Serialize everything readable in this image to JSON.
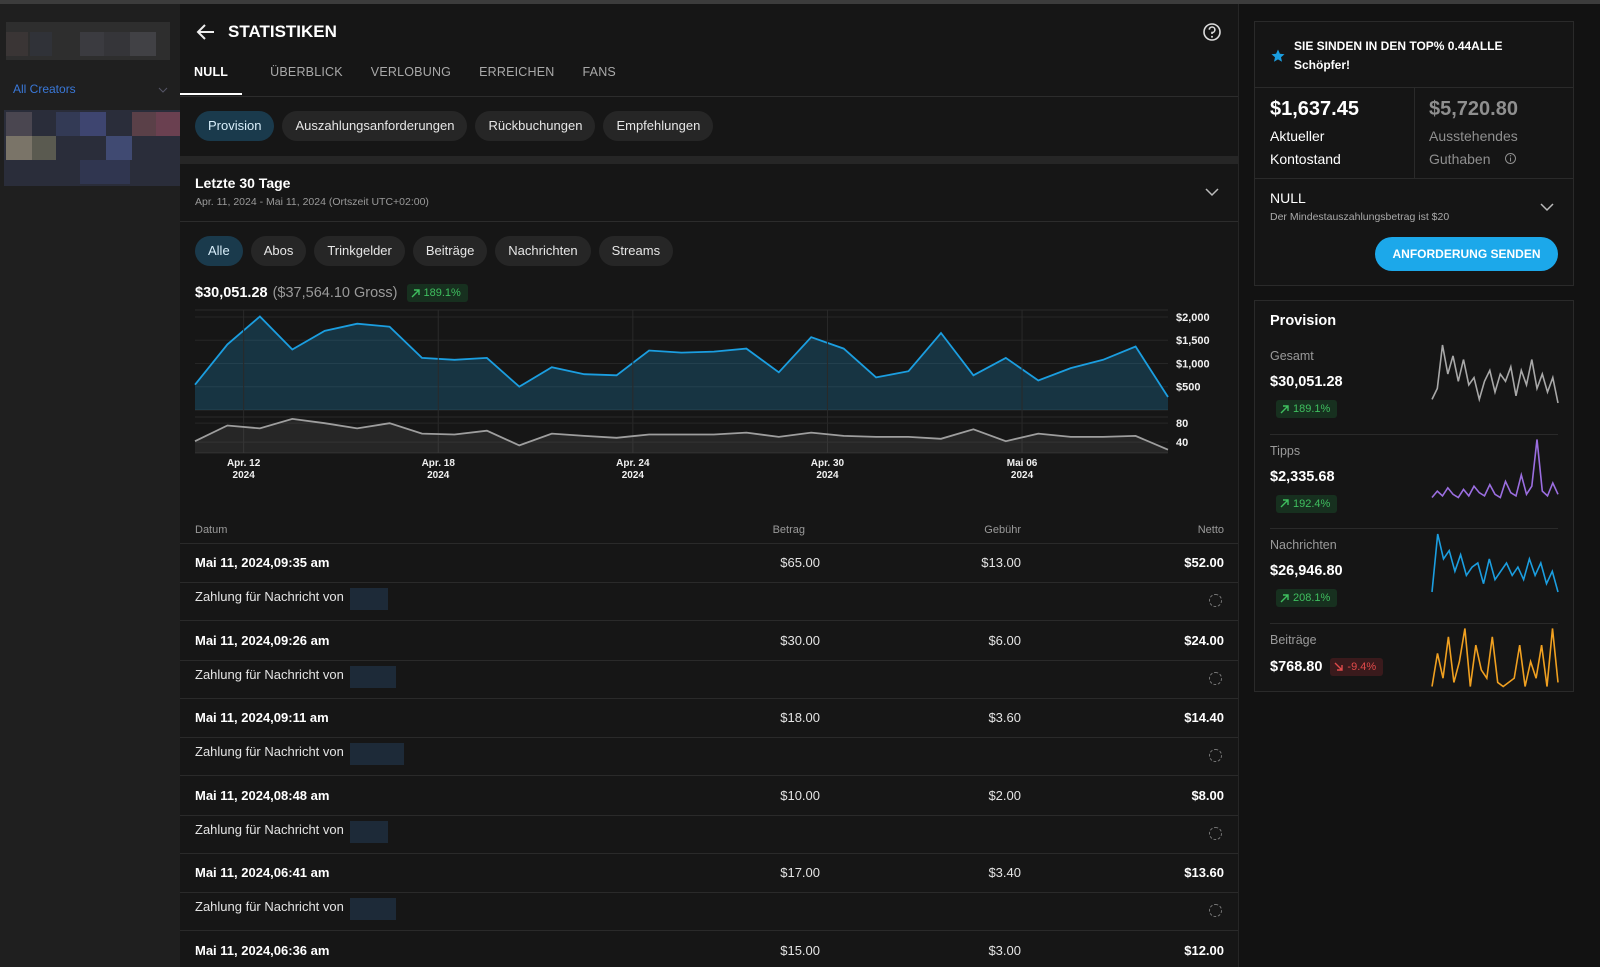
{
  "sidebar": {
    "filter": "All Creators"
  },
  "header": {
    "title": "STATISTIKEN",
    "tabs": [
      "NULL",
      "ÜBERBLICK",
      "VERLOBUNG",
      "ERREICHEN",
      "FANS"
    ]
  },
  "sections": [
    "Provision",
    "Auszahlungsanforderungen",
    "Rückbuchungen",
    "Empfehlungen"
  ],
  "period": {
    "title": "Letzte 30 Tage",
    "range": "Apr. 11, 2024 - Mai 11, 2024 (Ortszeit UTC+02:00)"
  },
  "filters": [
    "Alle",
    "Abos",
    "Trinkgelder",
    "Beiträge",
    "Nachrichten",
    "Streams"
  ],
  "summary": {
    "net": "$30,051.28",
    "gross": "($37,564.10 Gross)",
    "change": "189.1%"
  },
  "chart_data": [
    {
      "type": "area",
      "color": "#1b9ee0",
      "categories": [
        null,
        "Apr. 12\n2024",
        null,
        null,
        null,
        null,
        null,
        "Apr. 18\n2024",
        null,
        null,
        null,
        null,
        null,
        "Apr. 24\n2024",
        null,
        null,
        null,
        null,
        null,
        "Apr. 30\n2024",
        null,
        null,
        null,
        null,
        null,
        "Mai 06\n2024",
        null,
        null,
        null,
        null,
        null
      ],
      "values": [
        545,
        1410,
        2010,
        1300,
        1700,
        1855,
        1790,
        1120,
        1080,
        1120,
        500,
        920,
        770,
        745,
        1280,
        1235,
        1255,
        1320,
        810,
        1565,
        1320,
        700,
        835,
        1655,
        745,
        1120,
        635,
        900,
        1080,
        1365,
        280
      ],
      "ylim": [
        0,
        2150
      ],
      "yticks": [
        {
          "value": 2000,
          "label": "$2,000"
        },
        {
          "value": 1500,
          "label": "$1,500"
        },
        {
          "value": 1000,
          "label": "$1,000"
        },
        {
          "value": 500,
          "label": "$500"
        }
      ]
    },
    {
      "type": "area",
      "color": "#9e9e9e",
      "values": [
        42,
        75,
        69,
        89,
        80,
        69,
        80,
        58,
        56,
        64,
        33,
        58,
        53,
        49,
        56,
        56,
        56,
        60,
        51,
        60,
        53,
        51,
        51,
        47,
        67,
        42,
        58,
        51,
        51,
        53,
        24
      ],
      "ylim": [
        17,
        93
      ],
      "yticks": [
        80,
        40
      ]
    },
    {
      "type": "line",
      "color": "#a8a8a8",
      "values": [
        400,
        700,
        1900,
        1100,
        1600,
        900,
        1500,
        800,
        1000,
        400,
        900,
        1200,
        600,
        1100,
        900,
        1300,
        500,
        1200,
        800,
        1500,
        700,
        1100,
        600,
        1000,
        300
      ]
    },
    {
      "type": "line",
      "color": "#9b6ee0",
      "values": [
        20,
        60,
        30,
        80,
        40,
        20,
        70,
        30,
        90,
        50,
        30,
        100,
        40,
        20,
        120,
        50,
        30,
        160,
        40,
        90,
        380,
        60,
        30,
        110,
        40
      ]
    },
    {
      "type": "line",
      "color": "#1b9ee0",
      "values": [
        300,
        1700,
        1100,
        1300,
        800,
        1200,
        700,
        900,
        1000,
        500,
        1100,
        600,
        800,
        1000,
        700,
        900,
        600,
        1100,
        700,
        1000,
        500,
        800,
        300
      ]
    },
    {
      "type": "line",
      "color": "#f0a020",
      "values": [
        10,
        50,
        20,
        70,
        15,
        40,
        80,
        10,
        60,
        30,
        20,
        70,
        15,
        10,
        15,
        20,
        60,
        10,
        40,
        20,
        60,
        10,
        80,
        15
      ]
    }
  ],
  "table": {
    "columns": [
      "Datum",
      "Betrag",
      "Gebühr",
      "Netto"
    ],
    "rows": [
      {
        "date": "Mai 11, 2024,09:35 am",
        "amount": "$65.00",
        "fee": "$13.00",
        "net": "$52.00",
        "description": "Zahlung für Nachricht von"
      },
      {
        "date": "Mai 11, 2024,09:26 am",
        "amount": "$30.00",
        "fee": "$6.00",
        "net": "$24.00",
        "description": "Zahlung für Nachricht von"
      },
      {
        "date": "Mai 11, 2024,09:11 am",
        "amount": "$18.00",
        "fee": "$3.60",
        "net": "$14.40",
        "description": "Zahlung für Nachricht von"
      },
      {
        "date": "Mai 11, 2024,08:48 am",
        "amount": "$10.00",
        "fee": "$2.00",
        "net": "$8.00",
        "description": "Zahlung für Nachricht von"
      },
      {
        "date": "Mai 11, 2024,06:41 am",
        "amount": "$17.00",
        "fee": "$3.40",
        "net": "$13.60",
        "description": "Zahlung für Nachricht von"
      },
      {
        "date": "Mai 11, 2024,06:36 am",
        "amount": "$15.00",
        "fee": "$3.00",
        "net": "$12.00"
      }
    ]
  },
  "notice": "SIE SINDEN IN DEN TOP% 0.44ALLE Schöpfer!",
  "balance": {
    "current": "$1,637.45",
    "current_label": "Aktueller Kontostand",
    "pending": "$5,720.80",
    "pending_label": "Ausstehendes Guthaben"
  },
  "payout": {
    "method": "NULL",
    "note": "Der Mindestauszahlungsbetrag ist $20",
    "button": "ANFORDERUNG SENDEN"
  },
  "provision": {
    "title": "Provision",
    "items": [
      {
        "label": "Gesamt",
        "value": "$30,051.28",
        "change": "189.1%"
      },
      {
        "label": "Tipps",
        "value": "$2,335.68",
        "change": "192.4%"
      },
      {
        "label": "Nachrichten",
        "value": "$26,946.80",
        "change": "208.1%"
      },
      {
        "label": "Beiträge",
        "value": "$768.80",
        "change": "-9.4%"
      }
    ]
  }
}
